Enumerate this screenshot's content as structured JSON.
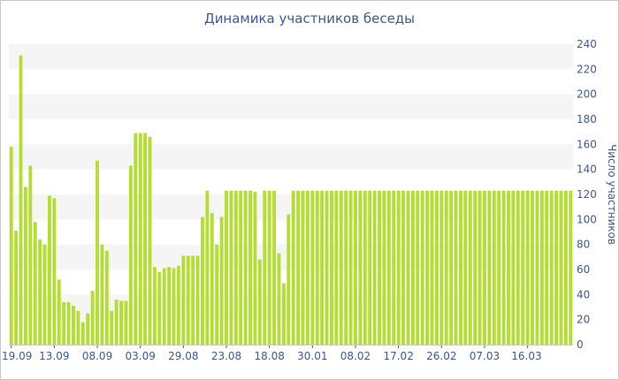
{
  "chart_data": {
    "type": "bar",
    "title": "Динамика участников беседы",
    "xlabel": "",
    "ylabel": "Число участников",
    "ylim": [
      0,
      240
    ],
    "yticks": [
      0,
      20,
      40,
      60,
      80,
      100,
      120,
      140,
      160,
      180,
      200,
      220,
      240
    ],
    "grid": "alternating horizontal bands",
    "bar_color": "#b5de34",
    "band_color": "#f5f5f5",
    "text_color": "#3e5a98",
    "values": [
      158,
      91,
      231,
      126,
      143,
      98,
      84,
      80,
      119,
      117,
      52,
      34,
      34,
      31,
      27,
      18,
      25,
      43,
      147,
      80,
      75,
      27,
      36,
      35,
      35,
      143,
      169,
      169,
      169,
      166,
      62,
      58,
      61,
      62,
      61,
      63,
      71,
      71,
      71,
      71,
      102,
      123,
      105,
      80,
      102,
      123,
      123,
      123,
      123,
      123,
      123,
      122,
      68,
      123,
      123,
      123,
      73,
      49,
      104,
      123,
      123,
      123,
      123,
      123,
      123,
      123,
      123,
      123,
      123,
      123,
      123,
      123,
      123,
      123,
      123,
      123,
      123,
      123,
      123,
      123,
      123,
      123,
      123,
      123,
      123,
      123,
      123,
      123,
      123,
      123,
      123,
      123,
      123,
      123,
      123,
      123,
      123,
      123,
      123,
      123,
      123,
      123,
      123,
      123,
      123,
      123,
      123,
      123,
      123,
      123,
      123,
      123,
      123,
      123,
      123,
      123,
      123,
      123
    ],
    "x_tick_labels": [
      {
        "label": "19.09",
        "index": 0
      },
      {
        "label": "13.09",
        "index": 9
      },
      {
        "label": "08.09",
        "index": 18
      },
      {
        "label": "03.09",
        "index": 27
      },
      {
        "label": "29.08",
        "index": 36
      },
      {
        "label": "23.08",
        "index": 45
      },
      {
        "label": "18.08",
        "index": 54
      },
      {
        "label": "30.01",
        "index": 63
      },
      {
        "label": "08.02",
        "index": 72
      },
      {
        "label": "17.02",
        "index": 81
      },
      {
        "label": "26.02",
        "index": 90
      },
      {
        "label": "07.03",
        "index": 99
      },
      {
        "label": "16.03",
        "index": 108
      }
    ]
  }
}
